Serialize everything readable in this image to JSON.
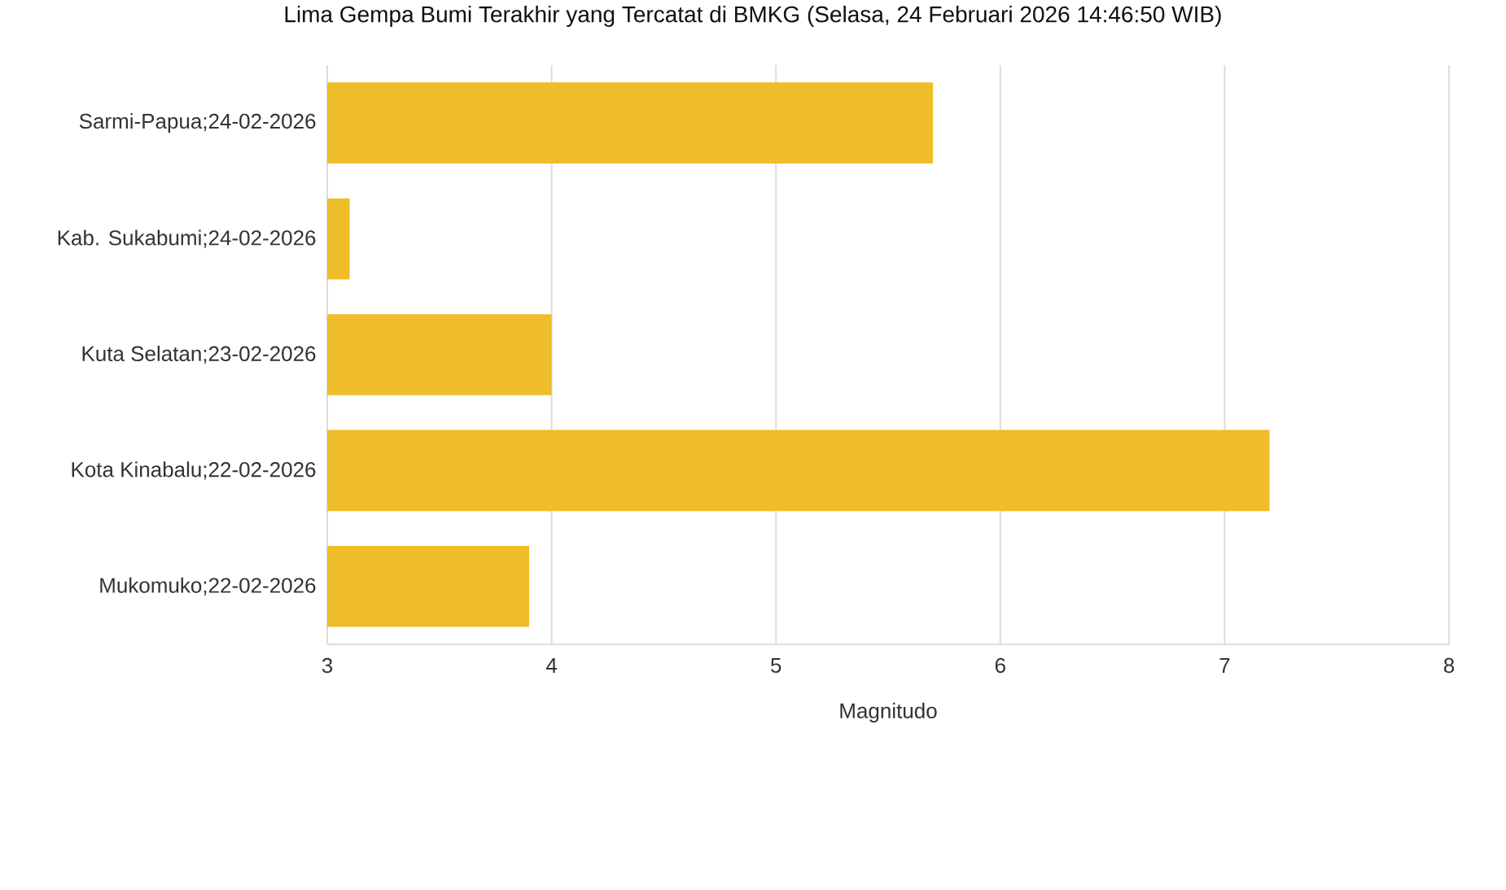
{
  "chart_data": {
    "type": "bar",
    "orientation": "horizontal",
    "title": "Lima Gempa Bumi Terakhir yang Tercatat di BMKG (Selasa, 24 Februari 2026 14:46:50 WIB)",
    "xlabel": "Magnitudo",
    "categories": [
      "Sarmi-Papua;24-02-2026",
      "Kab. Sukabumi;24-02-2026",
      "Kuta Selatan;23-02-2026",
      "Kota Kinabalu;22-02-2026",
      "Mukomuko;22-02-2026"
    ],
    "values": [
      5.7,
      3.1,
      4.0,
      7.2,
      3.9
    ],
    "color": "#eebd29",
    "xlim": [
      3,
      8
    ],
    "xticks": [
      3,
      4,
      5,
      6,
      7,
      8
    ],
    "grid": "x"
  }
}
